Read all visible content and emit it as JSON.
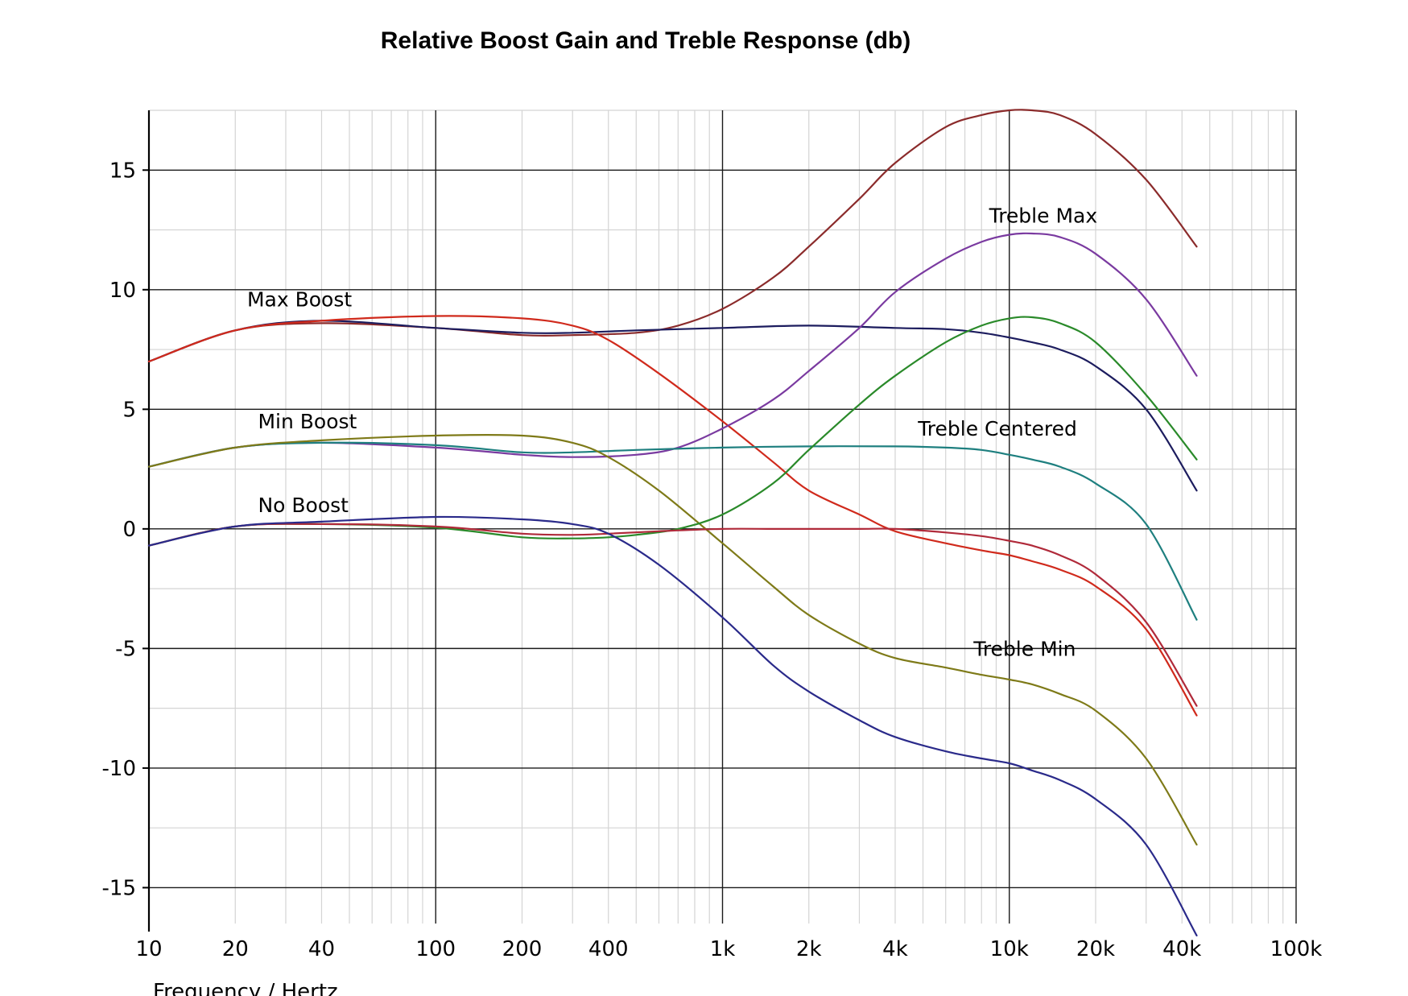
{
  "chart_data": {
    "type": "line",
    "title": "Relative Boost Gain and Treble Response (db)",
    "xlabel": "Frequency / Hertz",
    "ylabel": "",
    "xscale": "log",
    "xlim": [
      10,
      100000
    ],
    "ylim": [
      -16.5,
      17.5
    ],
    "grid": true,
    "x_ticks": [
      {
        "value": 10,
        "label": "10"
      },
      {
        "value": 20,
        "label": "20"
      },
      {
        "value": 40,
        "label": "40"
      },
      {
        "value": 100,
        "label": "100"
      },
      {
        "value": 200,
        "label": "200"
      },
      {
        "value": 400,
        "label": "400"
      },
      {
        "value": 1000,
        "label": "1k"
      },
      {
        "value": 2000,
        "label": "2k"
      },
      {
        "value": 4000,
        "label": "4k"
      },
      {
        "value": 10000,
        "label": "10k"
      },
      {
        "value": 20000,
        "label": "20k"
      },
      {
        "value": 40000,
        "label": "40k"
      },
      {
        "value": 100000,
        "label": "100k"
      }
    ],
    "y_ticks": [
      {
        "value": 15,
        "label": "15"
      },
      {
        "value": 10,
        "label": "10"
      },
      {
        "value": 5,
        "label": "5"
      },
      {
        "value": 0,
        "label": "0"
      },
      {
        "value": -5,
        "label": "-5"
      },
      {
        "value": -10,
        "label": "-10"
      },
      {
        "value": -15,
        "label": "-15"
      }
    ],
    "annotations": [
      {
        "text": "Max Boost",
        "x": 22,
        "y": 9.3
      },
      {
        "text": "Min Boost",
        "x": 24,
        "y": 4.2
      },
      {
        "text": "No Boost",
        "x": 24,
        "y": 0.7
      },
      {
        "text": "Treble Max",
        "x": 8500,
        "y": 12.8
      },
      {
        "text": "Treble Centered",
        "x": 4800,
        "y": 3.9
      },
      {
        "text": "Treble Min",
        "x": 7500,
        "y": -5.3
      }
    ],
    "series": [
      {
        "color": "#8b2b2b",
        "x": [
          10,
          20,
          40,
          100,
          200,
          300,
          500,
          700,
          1000,
          1500,
          2000,
          3000,
          4000,
          6000,
          8000,
          10000,
          12000,
          15000,
          20000,
          30000,
          45000
        ],
        "y": [
          7.0,
          8.3,
          8.6,
          8.4,
          8.1,
          8.1,
          8.2,
          8.5,
          9.2,
          10.5,
          11.8,
          13.8,
          15.3,
          16.8,
          17.3,
          17.5,
          17.5,
          17.3,
          16.5,
          14.6,
          11.8
        ]
      },
      {
        "color": "#1c1c5e",
        "x": [
          10,
          20,
          40,
          100,
          200,
          300,
          500,
          1000,
          2000,
          4000,
          6000,
          8000,
          10000,
          12000,
          15000,
          20000,
          30000,
          45000
        ],
        "y": [
          7.0,
          8.3,
          8.7,
          8.4,
          8.2,
          8.2,
          8.3,
          8.4,
          8.5,
          8.4,
          8.35,
          8.2,
          8.0,
          7.8,
          7.5,
          6.8,
          5.0,
          1.6
        ]
      },
      {
        "color": "#d02a1c",
        "x": [
          10,
          20,
          40,
          100,
          200,
          300,
          400,
          600,
          1000,
          1500,
          2000,
          3000,
          4000,
          6000,
          8000,
          10000,
          12000,
          15000,
          20000,
          30000,
          45000
        ],
        "y": [
          7.0,
          8.3,
          8.7,
          8.9,
          8.8,
          8.5,
          7.9,
          6.5,
          4.5,
          2.8,
          1.6,
          0.6,
          -0.1,
          -0.6,
          -0.9,
          -1.1,
          -1.35,
          -1.7,
          -2.4,
          -4.2,
          -7.8
        ]
      },
      {
        "color": "#7a3aa0",
        "x": [
          10,
          20,
          40,
          100,
          200,
          300,
          500,
          700,
          1000,
          1500,
          2000,
          3000,
          4000,
          6000,
          8000,
          10000,
          12000,
          15000,
          20000,
          30000,
          45000
        ],
        "y": [
          2.6,
          3.4,
          3.6,
          3.4,
          3.1,
          3.0,
          3.1,
          3.4,
          4.2,
          5.4,
          6.6,
          8.4,
          9.9,
          11.3,
          12.0,
          12.3,
          12.35,
          12.2,
          11.5,
          9.6,
          6.4
        ]
      },
      {
        "color": "#1e7f7f",
        "x": [
          10,
          20,
          40,
          100,
          200,
          300,
          500,
          1000,
          2000,
          4000,
          6000,
          8000,
          10000,
          12000,
          15000,
          20000,
          30000,
          45000
        ],
        "y": [
          2.6,
          3.4,
          3.6,
          3.5,
          3.2,
          3.2,
          3.3,
          3.4,
          3.45,
          3.45,
          3.4,
          3.3,
          3.1,
          2.9,
          2.6,
          1.9,
          0.2,
          -3.8
        ]
      },
      {
        "color": "#7e7a18",
        "x": [
          10,
          20,
          40,
          100,
          200,
          300,
          400,
          600,
          1000,
          1500,
          2000,
          3000,
          4000,
          6000,
          8000,
          10000,
          12000,
          15000,
          20000,
          30000,
          45000
        ],
        "y": [
          2.6,
          3.4,
          3.7,
          3.9,
          3.9,
          3.6,
          3.0,
          1.6,
          -0.6,
          -2.4,
          -3.6,
          -4.8,
          -5.4,
          -5.8,
          -6.1,
          -6.3,
          -6.5,
          -6.9,
          -7.6,
          -9.6,
          -13.2
        ]
      },
      {
        "color": "#2a8a2a",
        "x": [
          10,
          20,
          40,
          100,
          200,
          300,
          400,
          500,
          700,
          1000,
          1500,
          2000,
          3000,
          4000,
          6000,
          8000,
          10000,
          12000,
          15000,
          20000,
          30000,
          45000
        ],
        "y": [
          -0.7,
          0.1,
          0.2,
          0.05,
          -0.35,
          -0.4,
          -0.35,
          -0.25,
          0.0,
          0.6,
          1.9,
          3.3,
          5.2,
          6.4,
          7.8,
          8.5,
          8.8,
          8.85,
          8.6,
          7.8,
          5.6,
          2.9
        ]
      },
      {
        "color": "#b02a3a",
        "x": [
          10,
          20,
          40,
          100,
          200,
          300,
          400,
          600,
          1000,
          1500,
          2000,
          3000,
          4000,
          6000,
          8000,
          10000,
          12000,
          15000,
          20000,
          30000,
          45000
        ],
        "y": [
          -0.7,
          0.1,
          0.2,
          0.1,
          -0.2,
          -0.25,
          -0.2,
          -0.1,
          0.0,
          0.0,
          0.0,
          0.0,
          0.0,
          -0.15,
          -0.3,
          -0.5,
          -0.7,
          -1.1,
          -1.9,
          -3.9,
          -7.4
        ]
      },
      {
        "color": "#2a2a8a",
        "x": [
          10,
          20,
          40,
          100,
          200,
          300,
          400,
          600,
          1000,
          1500,
          2000,
          3000,
          4000,
          6000,
          8000,
          10000,
          12000,
          15000,
          20000,
          30000,
          45000
        ],
        "y": [
          -0.7,
          0.1,
          0.3,
          0.5,
          0.4,
          0.2,
          -0.2,
          -1.5,
          -3.7,
          -5.7,
          -6.8,
          -8.0,
          -8.7,
          -9.3,
          -9.6,
          -9.8,
          -10.1,
          -10.5,
          -11.3,
          -13.2,
          -17.0
        ]
      }
    ]
  }
}
